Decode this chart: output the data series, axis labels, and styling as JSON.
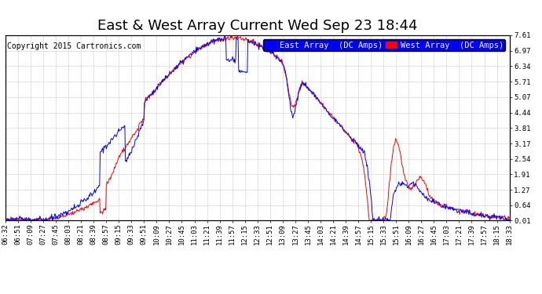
{
  "title": "East & West Array Current Wed Sep 23 18:44",
  "copyright": "Copyright 2015 Cartronics.com",
  "ylabel_right": [
    "7.61",
    "6.97",
    "6.34",
    "5.71",
    "5.07",
    "4.44",
    "3.81",
    "3.17",
    "2.54",
    "1.91",
    "1.27",
    "0.64",
    "0.01"
  ],
  "ytick_values": [
    7.61,
    6.97,
    6.34,
    5.71,
    5.07,
    4.44,
    3.81,
    3.17,
    2.54,
    1.91,
    1.27,
    0.64,
    0.01
  ],
  "ylim": [
    0.01,
    7.61
  ],
  "xtick_labels": [
    "06:32",
    "06:51",
    "07:09",
    "07:27",
    "07:45",
    "08:03",
    "08:21",
    "08:39",
    "08:57",
    "09:15",
    "09:33",
    "09:51",
    "10:09",
    "10:27",
    "10:45",
    "11:03",
    "11:21",
    "11:39",
    "11:57",
    "12:15",
    "12:33",
    "12:51",
    "13:09",
    "13:27",
    "13:45",
    "14:03",
    "14:21",
    "14:39",
    "14:57",
    "15:15",
    "15:33",
    "15:51",
    "16:09",
    "16:27",
    "16:45",
    "17:03",
    "17:21",
    "17:39",
    "17:57",
    "18:15",
    "18:33"
  ],
  "legend_east_label": "East Array  (DC Amps)",
  "legend_west_label": "West Array  (DC Amps)",
  "east_color": "#0000ff",
  "west_color": "#ff0000",
  "bg_color": "#ffffff",
  "grid_color": "#aaaaaa",
  "title_fontsize": 13,
  "copyright_fontsize": 7,
  "tick_fontsize": 6.5,
  "legend_fontsize": 7.5
}
